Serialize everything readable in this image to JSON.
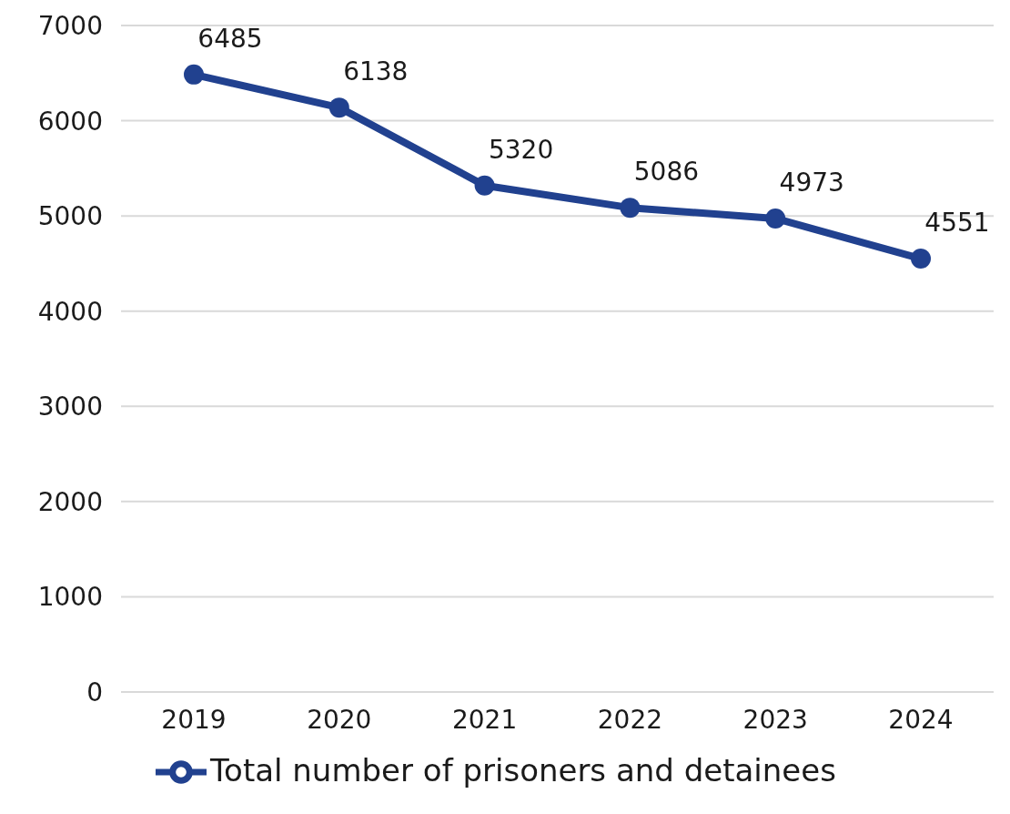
{
  "chart_data": {
    "type": "line",
    "categories": [
      "2019",
      "2020",
      "2021",
      "2022",
      "2023",
      "2024"
    ],
    "series": [
      {
        "name": "Total number of prisoners and detainees",
        "color": "#21418f",
        "values": [
          6485,
          6138,
          5320,
          5086,
          4973,
          4551
        ]
      }
    ],
    "ylim": [
      0,
      7000
    ],
    "yticks": [
      0,
      1000,
      2000,
      3000,
      4000,
      5000,
      6000,
      7000
    ],
    "grid": "y",
    "legend": "bottom",
    "marker": "circle",
    "line_style": "solid",
    "data_labels": true
  }
}
